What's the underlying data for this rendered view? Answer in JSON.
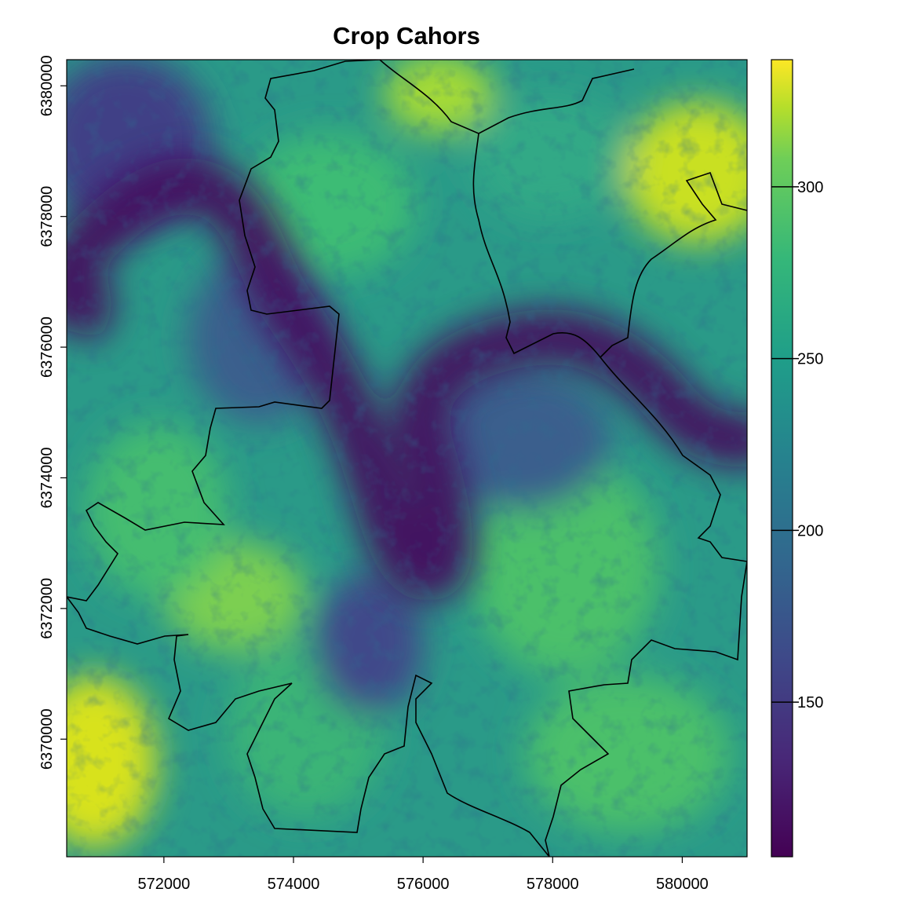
{
  "map": {
    "title": "Crop Cahors",
    "x_axis": {
      "range": [
        570500,
        581000
      ],
      "ticks": [
        572000,
        574000,
        576000,
        578000,
        580000
      ],
      "tick_labels": [
        "572000",
        "574000",
        "576000",
        "578000",
        "580000"
      ]
    },
    "y_axis": {
      "range": [
        6368200,
        6380400
      ],
      "ticks": [
        6370000,
        6372000,
        6374000,
        6376000,
        6378000,
        6380000
      ],
      "tick_labels": [
        "6370000",
        "6372000",
        "6374000",
        "6376000",
        "6378000",
        "6380000"
      ]
    },
    "legend": {
      "palette": "viridis",
      "range": [
        105,
        337
      ],
      "ticks": [
        150,
        200,
        250,
        300
      ],
      "tick_labels": [
        "150",
        "200",
        "250",
        "300"
      ],
      "placement": "right"
    },
    "colors": {
      "low": "#440154",
      "mid": "#21908c",
      "high": "#fde725",
      "boundary": "#000000"
    }
  }
}
